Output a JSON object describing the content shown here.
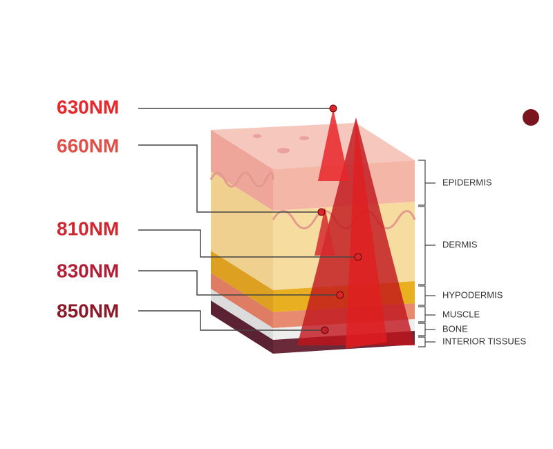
{
  "wavelengths": [
    "630NM",
    "660NM",
    "810NM",
    "830NM",
    "850NM"
  ],
  "layers": [
    "EPIDERMIS",
    "DERMIS",
    "HYPODERMIS",
    "MUSCLE",
    "BONE",
    "INTERIOR TISSUES"
  ]
}
